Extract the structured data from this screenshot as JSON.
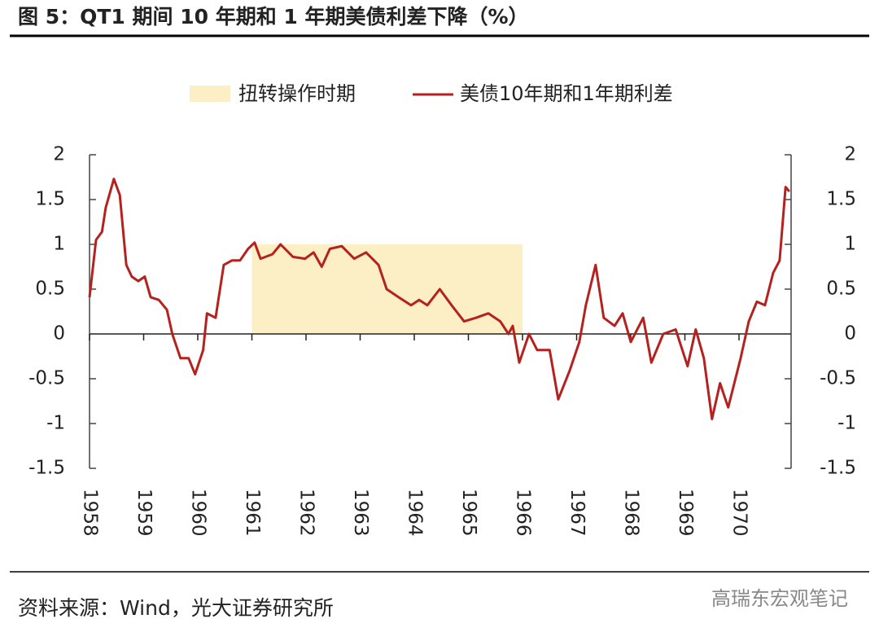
{
  "header": {
    "title": "图 5：QT1 期间 10 年期和 1 年期美债利差下降（%）"
  },
  "footer": {
    "source": "资料来源：Wind，光大证券研究所",
    "watermark": "高瑞东宏观笔记"
  },
  "chart_data": {
    "type": "line",
    "x": [
      1958.0,
      1958.12,
      1958.23,
      1958.3,
      1958.45,
      1958.56,
      1958.68,
      1958.78,
      1958.9,
      1959.02,
      1959.13,
      1959.28,
      1959.43,
      1959.53,
      1959.68,
      1959.83,
      1959.95,
      1960.1,
      1960.17,
      1960.33,
      1960.48,
      1960.63,
      1960.78,
      1960.93,
      1961.05,
      1961.16,
      1961.38,
      1961.53,
      1961.76,
      1961.98,
      1962.14,
      1962.29,
      1962.44,
      1962.66,
      1962.89,
      1963.11,
      1963.34,
      1963.49,
      1963.71,
      1963.94,
      1964.09,
      1964.24,
      1964.47,
      1964.69,
      1964.92,
      1965.14,
      1965.37,
      1965.59,
      1965.74,
      1965.82,
      1965.94,
      1966.12,
      1966.27,
      1966.5,
      1966.66,
      1966.87,
      1967.05,
      1967.17,
      1967.35,
      1967.5,
      1967.7,
      1967.85,
      1968.0,
      1968.23,
      1968.38,
      1968.6,
      1968.83,
      1969.05,
      1969.2,
      1969.35,
      1969.5,
      1969.65,
      1969.8,
      1970.03,
      1970.18,
      1970.33,
      1970.48,
      1970.63,
      1970.75,
      1970.86,
      1970.93
    ],
    "series": [
      {
        "name": "美债10年期和1年期利差",
        "color": "#b5211f",
        "values": [
          0.41,
          1.05,
          1.14,
          1.41,
          1.73,
          1.55,
          0.77,
          0.64,
          0.59,
          0.64,
          0.41,
          0.38,
          0.27,
          0,
          -0.27,
          -0.27,
          -0.45,
          -0.18,
          0.23,
          0.18,
          0.77,
          0.82,
          0.82,
          0.95,
          1.02,
          0.84,
          0.89,
          1.0,
          0.86,
          0.84,
          0.91,
          0.75,
          0.95,
          0.98,
          0.84,
          0.91,
          0.77,
          0.5,
          0.41,
          0.32,
          0.38,
          0.32,
          0.5,
          0.32,
          0.14,
          0.18,
          0.23,
          0.14,
          0,
          0.09,
          -0.32,
          0,
          -0.18,
          -0.18,
          -0.73,
          -0.41,
          -0.09,
          0.32,
          0.77,
          0.18,
          0.09,
          0.23,
          -0.09,
          0.18,
          -0.32,
          0,
          0.05,
          -0.36,
          0.05,
          -0.27,
          -0.95,
          -0.55,
          -0.82,
          -0.27,
          0.14,
          0.36,
          0.32,
          0.68,
          0.82,
          1.64,
          1.59
        ]
      }
    ],
    "shaded_regions": [
      {
        "name": "扭转操作时期",
        "start": 1961,
        "end": 1966,
        "ymin": 0,
        "ymax": 1,
        "color": "#fcefc6"
      }
    ],
    "xlim": [
      1958,
      1971
    ],
    "xticks": [
      1958,
      1959,
      1960,
      1961,
      1962,
      1963,
      1964,
      1965,
      1966,
      1967,
      1968,
      1969,
      1970
    ],
    "ylim": [
      -1.5,
      2
    ],
    "yticks": [
      -1.5,
      -1,
      -0.5,
      0,
      0.5,
      1,
      1.5,
      2
    ],
    "y2lim": [
      -1.5,
      2
    ],
    "y2ticks": [
      -1.5,
      -1,
      -0.5,
      0,
      0.5,
      1,
      1.5,
      2
    ],
    "grid": false
  }
}
